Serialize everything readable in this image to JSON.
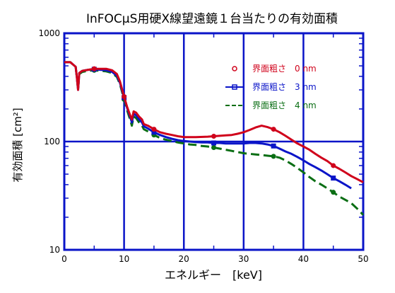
{
  "chart_data": {
    "type": "line",
    "title": "InFOCμS用硬X線望遠鏡１台当たりの有効面積",
    "xlabel": "エネルギー　[keV]",
    "ylabel": "有効面積 [cm²]",
    "xlim": [
      0,
      50
    ],
    "ylim": [
      10,
      1000
    ],
    "yscale": "log",
    "x_ticks": [
      0,
      10,
      20,
      30,
      40,
      50
    ],
    "x_tick_labels": [
      "0",
      "10",
      "20",
      "30",
      "40",
      "50"
    ],
    "y_ticks": [
      10,
      100,
      1000
    ],
    "y_tick_labels": [
      "10",
      "100",
      "1000"
    ],
    "grid": true,
    "legend_position": "top-right",
    "series": [
      {
        "name": "界面粗さ　0 nm",
        "color": "#d0021b",
        "dash": "solid",
        "marker": "circle",
        "x": [
          0,
          1,
          1.9,
          2.1,
          2.3,
          2.5,
          3,
          4,
          5,
          6,
          7,
          8,
          8.8,
          9.3,
          10,
          10.5,
          11,
          11.3,
          11.6,
          12,
          12.5,
          13,
          13.3,
          14,
          15,
          16,
          17,
          18,
          19,
          20,
          22,
          24,
          25,
          26,
          27,
          28,
          29,
          30,
          31,
          32,
          33,
          34,
          35,
          36,
          37,
          38,
          39,
          40,
          41,
          42,
          43,
          44,
          45,
          46,
          47,
          48,
          49,
          50
        ],
        "y": [
          540,
          540,
          490,
          390,
          300,
          430,
          450,
          460,
          470,
          470,
          470,
          455,
          420,
          360,
          260,
          210,
          175,
          160,
          190,
          185,
          170,
          160,
          145,
          140,
          130,
          122,
          118,
          115,
          112,
          110,
          110,
          111,
          112,
          113,
          114,
          115,
          118,
          122,
          128,
          135,
          140,
          136,
          130,
          122,
          113,
          104,
          96,
          90,
          84,
          77,
          71,
          66,
          60,
          56,
          52,
          48,
          45,
          42
        ]
      },
      {
        "name": "界面粗さ　3 nm",
        "color": "#0a14c8",
        "dash": "solid",
        "marker": "square",
        "x": [
          0,
          1,
          1.9,
          2.1,
          2.3,
          2.5,
          3,
          4,
          5,
          6,
          7,
          8,
          8.8,
          9.3,
          10,
          10.5,
          11,
          11.3,
          11.6,
          12,
          12.5,
          13,
          13.3,
          14,
          15,
          16,
          17,
          18,
          19,
          20,
          21,
          22,
          23,
          24,
          25,
          26,
          27,
          28,
          29,
          30,
          31,
          32,
          33,
          34,
          35,
          36,
          37,
          38,
          39,
          40,
          41,
          42,
          43,
          44,
          45,
          46,
          47,
          48
        ],
        "y": [
          540,
          540,
          490,
          390,
          300,
          430,
          450,
          460,
          465,
          460,
          455,
          440,
          405,
          350,
          255,
          205,
          170,
          150,
          180,
          175,
          160,
          150,
          138,
          132,
          122,
          115,
          110,
          106,
          103,
          101,
          100,
          99,
          98,
          98,
          97,
          97,
          96,
          96,
          96,
          96,
          97,
          97,
          96,
          94,
          91,
          86,
          81,
          77,
          72,
          67,
          62,
          58,
          54,
          50,
          46,
          43,
          40,
          37
        ]
      },
      {
        "name": "界面粗さ　4 nm",
        "color": "#0a6e14",
        "dash": "dashed",
        "marker": "circle",
        "x": [
          0,
          1,
          1.9,
          2.1,
          2.3,
          2.5,
          3,
          4,
          5,
          6,
          7,
          8,
          8.8,
          9.3,
          10,
          10.5,
          11,
          11.3,
          11.6,
          12,
          12.5,
          13,
          13.3,
          14,
          15,
          16,
          17,
          18,
          19,
          20,
          21,
          22,
          23,
          24,
          25,
          26,
          27,
          28,
          29,
          30,
          31,
          32,
          33,
          34,
          35,
          36,
          37,
          38,
          39,
          40,
          41,
          42,
          43,
          44,
          45,
          46,
          47,
          48,
          49,
          50
        ],
        "y": [
          540,
          540,
          490,
          390,
          300,
          420,
          440,
          450,
          455,
          450,
          445,
          430,
          395,
          340,
          245,
          195,
          160,
          140,
          170,
          165,
          150,
          140,
          130,
          124,
          115,
          108,
          104,
          101,
          98,
          96,
          94,
          93,
          91,
          90,
          88,
          86,
          84,
          82,
          80,
          78,
          77,
          76,
          75,
          74,
          73,
          71,
          67,
          62,
          57,
          52,
          47,
          43,
          40,
          37,
          34,
          31,
          29,
          27,
          24,
          21
        ]
      }
    ]
  }
}
